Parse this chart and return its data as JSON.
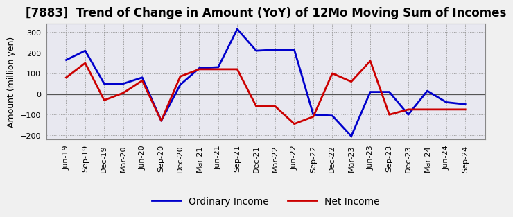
{
  "title": "[7883]  Trend of Change in Amount (YoY) of 12Mo Moving Sum of Incomes",
  "ylabel": "Amount (million yen)",
  "x_labels": [
    "Jun-19",
    "Sep-19",
    "Dec-19",
    "Mar-20",
    "Jun-20",
    "Sep-20",
    "Dec-20",
    "Mar-21",
    "Jun-21",
    "Sep-21",
    "Dec-21",
    "Mar-22",
    "Jun-22",
    "Sep-22",
    "Dec-22",
    "Mar-23",
    "Jun-23",
    "Sep-23",
    "Dec-23",
    "Mar-24",
    "Jun-24",
    "Sep-24"
  ],
  "ordinary_income": [
    165,
    210,
    50,
    50,
    80,
    -130,
    45,
    125,
    130,
    315,
    210,
    215,
    215,
    -100,
    -105,
    -205,
    10,
    10,
    -100,
    15,
    -40,
    -50
  ],
  "net_income": [
    80,
    150,
    -30,
    5,
    65,
    -130,
    85,
    120,
    120,
    120,
    -60,
    -60,
    -145,
    -110,
    100,
    60,
    160,
    -100,
    -75,
    -75,
    -75,
    -75
  ],
  "ordinary_income_color": "#0000cc",
  "net_income_color": "#cc0000",
  "ylim": [
    -220,
    340
  ],
  "yticks": [
    -200,
    -100,
    0,
    100,
    200,
    300
  ],
  "bg_color": "#F0F0F0",
  "plot_bg_color": "#E8E8F0",
  "grid_color": "#999999",
  "legend_ordinary": "Ordinary Income",
  "legend_net": "Net Income",
  "title_fontsize": 12,
  "axis_fontsize": 9,
  "tick_fontsize": 8
}
